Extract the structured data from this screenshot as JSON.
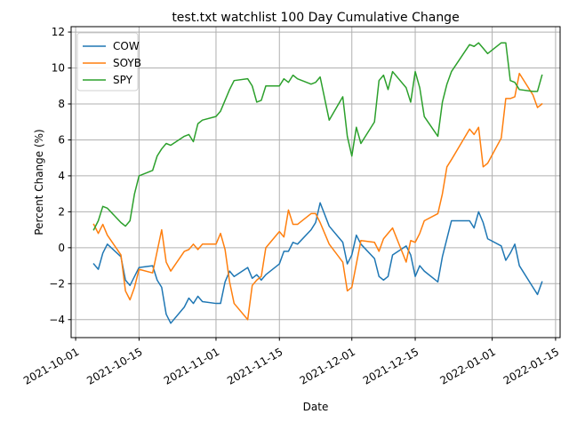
{
  "chart_data": {
    "type": "line",
    "title": "test.txt watchlist 100 Day Cumulative Change",
    "xlabel": "Date",
    "ylabel": "Percent Change (%)",
    "xlim": [
      "2021-09-30",
      "2022-01-16"
    ],
    "ylim": [
      -5,
      12.3
    ],
    "x_ticks": [
      "2021-10-01",
      "2021-10-15",
      "2021-11-01",
      "2021-11-15",
      "2021-12-01",
      "2021-12-15",
      "2022-01-01",
      "2022-01-15"
    ],
    "y_ticks": [
      -4,
      -2,
      0,
      2,
      4,
      6,
      8,
      10,
      12
    ],
    "grid": true,
    "legend_position": "top-left",
    "series": [
      {
        "name": "COW",
        "color": "#1f77b4",
        "points": [
          [
            "2021-10-05",
            -0.9
          ],
          [
            "2021-10-06",
            -1.2
          ],
          [
            "2021-10-07",
            -0.3
          ],
          [
            "2021-10-08",
            0.2
          ],
          [
            "2021-10-11",
            -0.5
          ],
          [
            "2021-10-12",
            -1.8
          ],
          [
            "2021-10-13",
            -2.1
          ],
          [
            "2021-10-14",
            -1.6
          ],
          [
            "2021-10-15",
            -1.1
          ],
          [
            "2021-10-18",
            -1.0
          ],
          [
            "2021-10-19",
            -1.8
          ],
          [
            "2021-10-20",
            -2.2
          ],
          [
            "2021-10-21",
            -3.7
          ],
          [
            "2021-10-22",
            -4.2
          ],
          [
            "2021-10-25",
            -3.3
          ],
          [
            "2021-10-26",
            -2.8
          ],
          [
            "2021-10-27",
            -3.1
          ],
          [
            "2021-10-28",
            -2.7
          ],
          [
            "2021-10-29",
            -3.0
          ],
          [
            "2021-11-01",
            -3.1
          ],
          [
            "2021-11-02",
            -3.1
          ],
          [
            "2021-11-03",
            -1.9
          ],
          [
            "2021-11-04",
            -1.3
          ],
          [
            "2021-11-05",
            -1.6
          ],
          [
            "2021-11-08",
            -1.1
          ],
          [
            "2021-11-09",
            -1.7
          ],
          [
            "2021-11-10",
            -1.5
          ],
          [
            "2021-11-11",
            -1.8
          ],
          [
            "2021-11-12",
            -1.5
          ],
          [
            "2021-11-15",
            -0.9
          ],
          [
            "2021-11-16",
            -0.2
          ],
          [
            "2021-11-17",
            -0.2
          ],
          [
            "2021-11-18",
            0.3
          ],
          [
            "2021-11-19",
            0.2
          ],
          [
            "2021-11-22",
            1.0
          ],
          [
            "2021-11-23",
            1.4
          ],
          [
            "2021-11-24",
            2.5
          ],
          [
            "2021-11-26",
            1.2
          ],
          [
            "2021-11-29",
            0.3
          ],
          [
            "2021-11-30",
            -0.9
          ],
          [
            "2021-12-01",
            -0.4
          ],
          [
            "2021-12-02",
            0.7
          ],
          [
            "2021-12-03",
            0.2
          ],
          [
            "2021-12-06",
            -0.6
          ],
          [
            "2021-12-07",
            -1.6
          ],
          [
            "2021-12-08",
            -1.8
          ],
          [
            "2021-12-09",
            -1.6
          ],
          [
            "2021-12-10",
            -0.4
          ],
          [
            "2021-12-13",
            0.1
          ],
          [
            "2021-12-14",
            -0.4
          ],
          [
            "2021-12-15",
            -1.6
          ],
          [
            "2021-12-16",
            -1.0
          ],
          [
            "2021-12-17",
            -1.3
          ],
          [
            "2021-12-20",
            -1.9
          ],
          [
            "2021-12-21",
            -0.5
          ],
          [
            "2021-12-22",
            0.5
          ],
          [
            "2021-12-23",
            1.5
          ],
          [
            "2021-12-27",
            1.5
          ],
          [
            "2021-12-28",
            1.1
          ],
          [
            "2021-12-29",
            2.0
          ],
          [
            "2021-12-30",
            1.4
          ],
          [
            "2021-12-31",
            0.5
          ],
          [
            "2022-01-03",
            0.1
          ],
          [
            "2022-01-04",
            -0.7
          ],
          [
            "2022-01-05",
            -0.3
          ],
          [
            "2022-01-06",
            0.2
          ],
          [
            "2022-01-07",
            -1.0
          ],
          [
            "2022-01-10",
            -2.2
          ],
          [
            "2022-01-11",
            -2.6
          ],
          [
            "2022-01-12",
            -1.9
          ]
        ]
      },
      {
        "name": "SOYB",
        "color": "#ff7f0e",
        "points": [
          [
            "2021-10-05",
            1.3
          ],
          [
            "2021-10-06",
            0.8
          ],
          [
            "2021-10-07",
            1.3
          ],
          [
            "2021-10-08",
            0.7
          ],
          [
            "2021-10-11",
            -0.4
          ],
          [
            "2021-10-12",
            -2.4
          ],
          [
            "2021-10-13",
            -2.9
          ],
          [
            "2021-10-14",
            -2.2
          ],
          [
            "2021-10-15",
            -1.2
          ],
          [
            "2021-10-18",
            -1.4
          ],
          [
            "2021-10-19",
            -0.2
          ],
          [
            "2021-10-20",
            1.0
          ],
          [
            "2021-10-21",
            -0.8
          ],
          [
            "2021-10-22",
            -1.3
          ],
          [
            "2021-10-25",
            -0.2
          ],
          [
            "2021-10-26",
            -0.1
          ],
          [
            "2021-10-27",
            0.2
          ],
          [
            "2021-10-28",
            -0.1
          ],
          [
            "2021-10-29",
            0.2
          ],
          [
            "2021-11-01",
            0.2
          ],
          [
            "2021-11-02",
            0.8
          ],
          [
            "2021-11-03",
            -0.1
          ],
          [
            "2021-11-04",
            -1.9
          ],
          [
            "2021-11-05",
            -3.1
          ],
          [
            "2021-11-08",
            -4.0
          ],
          [
            "2021-11-09",
            -2.1
          ],
          [
            "2021-11-10",
            -1.8
          ],
          [
            "2021-11-11",
            -1.6
          ],
          [
            "2021-11-12",
            0.0
          ],
          [
            "2021-11-15",
            0.9
          ],
          [
            "2021-11-16",
            0.6
          ],
          [
            "2021-11-17",
            2.1
          ],
          [
            "2021-11-18",
            1.3
          ],
          [
            "2021-11-19",
            1.3
          ],
          [
            "2021-11-22",
            1.9
          ],
          [
            "2021-11-23",
            1.9
          ],
          [
            "2021-11-24",
            1.4
          ],
          [
            "2021-11-26",
            0.2
          ],
          [
            "2021-11-29",
            -0.8
          ],
          [
            "2021-11-30",
            -2.4
          ],
          [
            "2021-12-01",
            -2.2
          ],
          [
            "2021-12-02",
            -0.9
          ],
          [
            "2021-12-03",
            0.4
          ],
          [
            "2021-12-06",
            0.3
          ],
          [
            "2021-12-07",
            -0.2
          ],
          [
            "2021-12-08",
            0.5
          ],
          [
            "2021-12-09",
            0.8
          ],
          [
            "2021-12-10",
            1.1
          ],
          [
            "2021-12-13",
            -0.8
          ],
          [
            "2021-12-14",
            0.4
          ],
          [
            "2021-12-15",
            0.3
          ],
          [
            "2021-12-16",
            0.8
          ],
          [
            "2021-12-17",
            1.5
          ],
          [
            "2021-12-20",
            1.9
          ],
          [
            "2021-12-21",
            3.0
          ],
          [
            "2021-12-22",
            4.5
          ],
          [
            "2021-12-23",
            4.9
          ],
          [
            "2021-12-27",
            6.6
          ],
          [
            "2021-12-28",
            6.3
          ],
          [
            "2021-12-29",
            6.7
          ],
          [
            "2021-12-30",
            4.5
          ],
          [
            "2021-12-31",
            4.7
          ],
          [
            "2022-01-03",
            6.1
          ],
          [
            "2022-01-04",
            8.3
          ],
          [
            "2022-01-05",
            8.3
          ],
          [
            "2022-01-06",
            8.4
          ],
          [
            "2022-01-07",
            9.7
          ],
          [
            "2022-01-10",
            8.5
          ],
          [
            "2022-01-11",
            7.8
          ],
          [
            "2022-01-12",
            8.0
          ]
        ]
      },
      {
        "name": "SPY",
        "color": "#2ca02c",
        "points": [
          [
            "2021-10-05",
            1.0
          ],
          [
            "2021-10-06",
            1.5
          ],
          [
            "2021-10-07",
            2.3
          ],
          [
            "2021-10-08",
            2.2
          ],
          [
            "2021-10-11",
            1.4
          ],
          [
            "2021-10-12",
            1.2
          ],
          [
            "2021-10-13",
            1.5
          ],
          [
            "2021-10-14",
            3.0
          ],
          [
            "2021-10-15",
            4.0
          ],
          [
            "2021-10-18",
            4.3
          ],
          [
            "2021-10-19",
            5.1
          ],
          [
            "2021-10-20",
            5.5
          ],
          [
            "2021-10-21",
            5.8
          ],
          [
            "2021-10-22",
            5.7
          ],
          [
            "2021-10-25",
            6.2
          ],
          [
            "2021-10-26",
            6.3
          ],
          [
            "2021-10-27",
            5.9
          ],
          [
            "2021-10-28",
            6.9
          ],
          [
            "2021-10-29",
            7.1
          ],
          [
            "2021-11-01",
            7.3
          ],
          [
            "2021-11-02",
            7.6
          ],
          [
            "2021-11-03",
            8.2
          ],
          [
            "2021-11-04",
            8.8
          ],
          [
            "2021-11-05",
            9.3
          ],
          [
            "2021-11-08",
            9.4
          ],
          [
            "2021-11-09",
            9.0
          ],
          [
            "2021-11-10",
            8.1
          ],
          [
            "2021-11-11",
            8.2
          ],
          [
            "2021-11-12",
            9.0
          ],
          [
            "2021-11-15",
            9.0
          ],
          [
            "2021-11-16",
            9.4
          ],
          [
            "2021-11-17",
            9.2
          ],
          [
            "2021-11-18",
            9.6
          ],
          [
            "2021-11-19",
            9.4
          ],
          [
            "2021-11-22",
            9.1
          ],
          [
            "2021-11-23",
            9.2
          ],
          [
            "2021-11-24",
            9.5
          ],
          [
            "2021-11-26",
            7.1
          ],
          [
            "2021-11-29",
            8.4
          ],
          [
            "2021-11-30",
            6.2
          ],
          [
            "2021-12-01",
            5.1
          ],
          [
            "2021-12-02",
            6.7
          ],
          [
            "2021-12-03",
            5.8
          ],
          [
            "2021-12-06",
            7.0
          ],
          [
            "2021-12-07",
            9.3
          ],
          [
            "2021-12-08",
            9.6
          ],
          [
            "2021-12-09",
            8.8
          ],
          [
            "2021-12-10",
            9.8
          ],
          [
            "2021-12-13",
            8.9
          ],
          [
            "2021-12-14",
            8.1
          ],
          [
            "2021-12-15",
            9.8
          ],
          [
            "2021-12-16",
            8.9
          ],
          [
            "2021-12-17",
            7.3
          ],
          [
            "2021-12-20",
            6.2
          ],
          [
            "2021-12-21",
            8.1
          ],
          [
            "2021-12-22",
            9.1
          ],
          [
            "2021-12-23",
            9.8
          ],
          [
            "2021-12-27",
            11.3
          ],
          [
            "2021-12-28",
            11.2
          ],
          [
            "2021-12-29",
            11.4
          ],
          [
            "2021-12-30",
            11.1
          ],
          [
            "2021-12-31",
            10.8
          ],
          [
            "2022-01-03",
            11.4
          ],
          [
            "2022-01-04",
            11.4
          ],
          [
            "2022-01-05",
            9.3
          ],
          [
            "2022-01-06",
            9.2
          ],
          [
            "2022-01-07",
            8.8
          ],
          [
            "2022-01-10",
            8.7
          ],
          [
            "2022-01-11",
            8.7
          ],
          [
            "2022-01-12",
            9.6
          ]
        ]
      }
    ]
  }
}
